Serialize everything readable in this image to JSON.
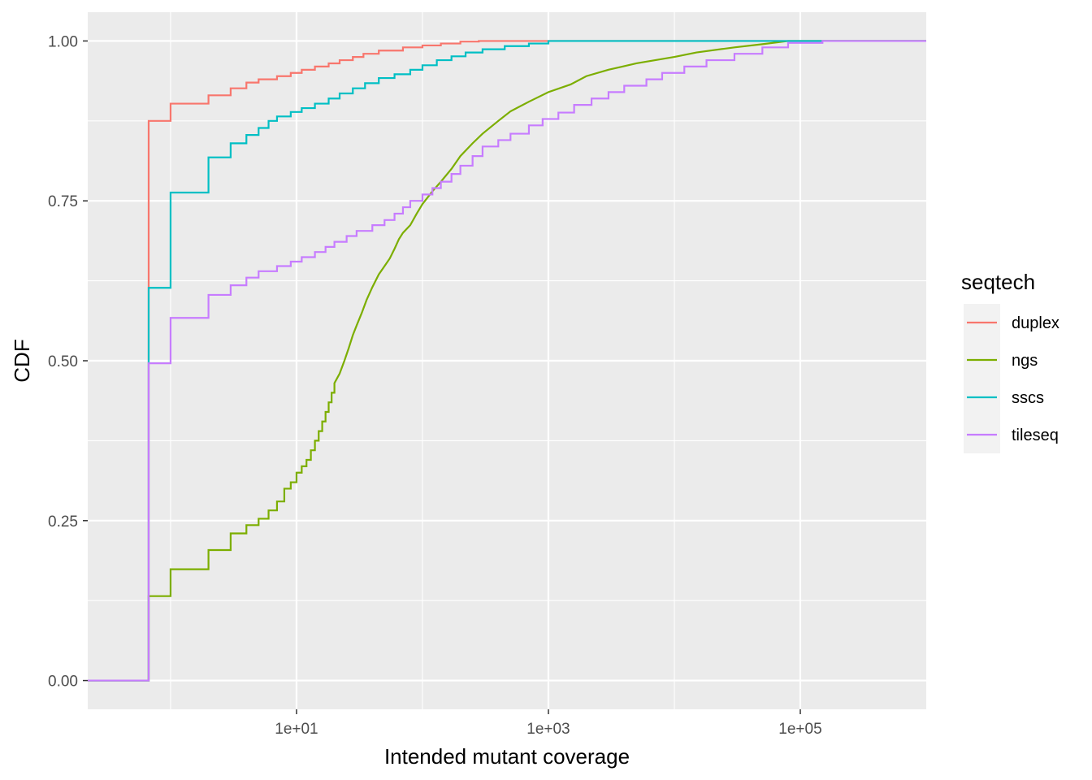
{
  "chart_data": {
    "type": "line",
    "title": "",
    "xlabel": "Intended mutant coverage",
    "ylabel": "CDF",
    "x_scale": "log10",
    "xlim": [
      0.22,
      1000000
    ],
    "ylim": [
      -0.045,
      1.045
    ],
    "x_ticks": [
      10,
      1000,
      100000
    ],
    "x_tick_labels": [
      "1e+01",
      "1e+03",
      "1e+05"
    ],
    "x_minor_ticks": [
      1,
      100,
      10000
    ],
    "y_ticks": [
      0,
      0.25,
      0.5,
      0.75,
      1
    ],
    "y_tick_labels": [
      "0.00",
      "0.25",
      "0.50",
      "0.75",
      "1.00"
    ],
    "grid": true,
    "legend": {
      "title": "seqtech",
      "position": "right"
    },
    "series": [
      {
        "name": "duplex",
        "color": "#F8766D",
        "points": [
          [
            0.22,
            0
          ],
          [
            0.67,
            0
          ],
          [
            0.67,
            0.875
          ],
          [
            1,
            0.875
          ],
          [
            1,
            0.902
          ],
          [
            2,
            0.902
          ],
          [
            2,
            0.915
          ],
          [
            3,
            0.915
          ],
          [
            3,
            0.926
          ],
          [
            4,
            0.926
          ],
          [
            4,
            0.935
          ],
          [
            5,
            0.935
          ],
          [
            5,
            0.94
          ],
          [
            7,
            0.94
          ],
          [
            7,
            0.945
          ],
          [
            9,
            0.945
          ],
          [
            9,
            0.95
          ],
          [
            11,
            0.95
          ],
          [
            11,
            0.955
          ],
          [
            14,
            0.955
          ],
          [
            14,
            0.96
          ],
          [
            18,
            0.96
          ],
          [
            18,
            0.965
          ],
          [
            22,
            0.965
          ],
          [
            22,
            0.97
          ],
          [
            28,
            0.97
          ],
          [
            28,
            0.975
          ],
          [
            34,
            0.975
          ],
          [
            34,
            0.98
          ],
          [
            45,
            0.98
          ],
          [
            45,
            0.985
          ],
          [
            70,
            0.985
          ],
          [
            70,
            0.99
          ],
          [
            100,
            0.99
          ],
          [
            100,
            0.993
          ],
          [
            140,
            0.993
          ],
          [
            140,
            0.996
          ],
          [
            200,
            0.996
          ],
          [
            200,
            0.999
          ],
          [
            280,
            0.999
          ],
          [
            280,
            1
          ],
          [
            1000000,
            1
          ]
        ]
      },
      {
        "name": "ngs",
        "color": "#7CAE00",
        "points": [
          [
            0.22,
            0
          ],
          [
            0.67,
            0
          ],
          [
            0.67,
            0.132
          ],
          [
            1,
            0.132
          ],
          [
            1,
            0.174
          ],
          [
            2,
            0.174
          ],
          [
            2,
            0.204
          ],
          [
            3,
            0.204
          ],
          [
            3,
            0.23
          ],
          [
            4,
            0.23
          ],
          [
            4,
            0.243
          ],
          [
            5,
            0.243
          ],
          [
            5,
            0.253
          ],
          [
            6,
            0.253
          ],
          [
            6,
            0.266
          ],
          [
            7,
            0.266
          ],
          [
            7,
            0.28
          ],
          [
            8,
            0.28
          ],
          [
            8,
            0.3
          ],
          [
            9,
            0.3
          ],
          [
            9,
            0.31
          ],
          [
            10,
            0.31
          ],
          [
            10,
            0.325
          ],
          [
            11,
            0.325
          ],
          [
            11,
            0.335
          ],
          [
            12,
            0.335
          ],
          [
            12,
            0.345
          ],
          [
            13,
            0.345
          ],
          [
            13,
            0.36
          ],
          [
            14,
            0.36
          ],
          [
            14,
            0.375
          ],
          [
            15,
            0.375
          ],
          [
            15,
            0.39
          ],
          [
            16,
            0.39
          ],
          [
            16,
            0.405
          ],
          [
            17,
            0.405
          ],
          [
            17,
            0.42
          ],
          [
            18,
            0.42
          ],
          [
            18,
            0.435
          ],
          [
            19,
            0.435
          ],
          [
            19,
            0.45
          ],
          [
            20,
            0.45
          ],
          [
            20,
            0.465
          ],
          [
            22,
            0.48
          ],
          [
            24,
            0.5
          ],
          [
            26,
            0.52
          ],
          [
            28,
            0.54
          ],
          [
            30,
            0.555
          ],
          [
            33,
            0.575
          ],
          [
            36,
            0.595
          ],
          [
            40,
            0.615
          ],
          [
            45,
            0.635
          ],
          [
            50,
            0.648
          ],
          [
            55,
            0.66
          ],
          [
            60,
            0.675
          ],
          [
            65,
            0.69
          ],
          [
            70,
            0.7
          ],
          [
            80,
            0.712
          ],
          [
            90,
            0.73
          ],
          [
            100,
            0.745
          ],
          [
            120,
            0.765
          ],
          [
            140,
            0.78
          ],
          [
            170,
            0.8
          ],
          [
            200,
            0.82
          ],
          [
            250,
            0.84
          ],
          [
            300,
            0.855
          ],
          [
            400,
            0.875
          ],
          [
            500,
            0.89
          ],
          [
            700,
            0.905
          ],
          [
            1000,
            0.92
          ],
          [
            1500,
            0.932
          ],
          [
            2000,
            0.945
          ],
          [
            3000,
            0.955
          ],
          [
            5000,
            0.965
          ],
          [
            10000,
            0.975
          ],
          [
            15000,
            0.982
          ],
          [
            30000,
            0.99
          ],
          [
            50000,
            0.995
          ],
          [
            80000,
            1
          ],
          [
            1000000,
            1
          ]
        ]
      },
      {
        "name": "sscs",
        "color": "#00BFC4",
        "points": [
          [
            0.22,
            0
          ],
          [
            0.67,
            0
          ],
          [
            0.67,
            0.614
          ],
          [
            1,
            0.614
          ],
          [
            1,
            0.763
          ],
          [
            2,
            0.763
          ],
          [
            2,
            0.818
          ],
          [
            3,
            0.818
          ],
          [
            3,
            0.84
          ],
          [
            4,
            0.84
          ],
          [
            4,
            0.853
          ],
          [
            5,
            0.853
          ],
          [
            5,
            0.864
          ],
          [
            6,
            0.864
          ],
          [
            6,
            0.875
          ],
          [
            7,
            0.875
          ],
          [
            7,
            0.882
          ],
          [
            9,
            0.882
          ],
          [
            9,
            0.889
          ],
          [
            11,
            0.889
          ],
          [
            11,
            0.895
          ],
          [
            14,
            0.895
          ],
          [
            14,
            0.902
          ],
          [
            18,
            0.902
          ],
          [
            18,
            0.91
          ],
          [
            22,
            0.91
          ],
          [
            22,
            0.918
          ],
          [
            28,
            0.918
          ],
          [
            28,
            0.926
          ],
          [
            35,
            0.926
          ],
          [
            35,
            0.934
          ],
          [
            45,
            0.934
          ],
          [
            45,
            0.942
          ],
          [
            60,
            0.942
          ],
          [
            60,
            0.948
          ],
          [
            80,
            0.948
          ],
          [
            80,
            0.955
          ],
          [
            100,
            0.955
          ],
          [
            100,
            0.962
          ],
          [
            130,
            0.962
          ],
          [
            130,
            0.97
          ],
          [
            170,
            0.97
          ],
          [
            170,
            0.976
          ],
          [
            220,
            0.976
          ],
          [
            220,
            0.982
          ],
          [
            300,
            0.982
          ],
          [
            300,
            0.987
          ],
          [
            450,
            0.987
          ],
          [
            450,
            0.992
          ],
          [
            700,
            0.992
          ],
          [
            700,
            0.996
          ],
          [
            1000,
            0.996
          ],
          [
            1000,
            1
          ],
          [
            1000000,
            1
          ]
        ]
      },
      {
        "name": "tileseq",
        "color": "#C77CFF",
        "points": [
          [
            0.22,
            0
          ],
          [
            0.67,
            0
          ],
          [
            0.67,
            0.496
          ],
          [
            1,
            0.496
          ],
          [
            1,
            0.567
          ],
          [
            2,
            0.567
          ],
          [
            2,
            0.603
          ],
          [
            3,
            0.603
          ],
          [
            3,
            0.618
          ],
          [
            4,
            0.618
          ],
          [
            4,
            0.63
          ],
          [
            5,
            0.63
          ],
          [
            5,
            0.64
          ],
          [
            7,
            0.64
          ],
          [
            7,
            0.648
          ],
          [
            9,
            0.648
          ],
          [
            9,
            0.655
          ],
          [
            11,
            0.655
          ],
          [
            11,
            0.662
          ],
          [
            14,
            0.662
          ],
          [
            14,
            0.67
          ],
          [
            17,
            0.67
          ],
          [
            17,
            0.678
          ],
          [
            20,
            0.678
          ],
          [
            20,
            0.686
          ],
          [
            25,
            0.686
          ],
          [
            25,
            0.695
          ],
          [
            30,
            0.695
          ],
          [
            30,
            0.703
          ],
          [
            40,
            0.703
          ],
          [
            40,
            0.712
          ],
          [
            50,
            0.712
          ],
          [
            50,
            0.72
          ],
          [
            60,
            0.72
          ],
          [
            60,
            0.73
          ],
          [
            70,
            0.73
          ],
          [
            70,
            0.74
          ],
          [
            80,
            0.74
          ],
          [
            80,
            0.75
          ],
          [
            100,
            0.75
          ],
          [
            100,
            0.76
          ],
          [
            120,
            0.76
          ],
          [
            120,
            0.77
          ],
          [
            140,
            0.77
          ],
          [
            140,
            0.78
          ],
          [
            170,
            0.78
          ],
          [
            170,
            0.792
          ],
          [
            200,
            0.792
          ],
          [
            200,
            0.805
          ],
          [
            250,
            0.805
          ],
          [
            250,
            0.82
          ],
          [
            300,
            0.82
          ],
          [
            300,
            0.835
          ],
          [
            400,
            0.835
          ],
          [
            400,
            0.845
          ],
          [
            500,
            0.845
          ],
          [
            500,
            0.855
          ],
          [
            700,
            0.855
          ],
          [
            700,
            0.868
          ],
          [
            900,
            0.868
          ],
          [
            900,
            0.878
          ],
          [
            1200,
            0.878
          ],
          [
            1200,
            0.888
          ],
          [
            1600,
            0.888
          ],
          [
            1600,
            0.9
          ],
          [
            2200,
            0.9
          ],
          [
            2200,
            0.91
          ],
          [
            3000,
            0.91
          ],
          [
            3000,
            0.92
          ],
          [
            4000,
            0.92
          ],
          [
            4000,
            0.93
          ],
          [
            6000,
            0.93
          ],
          [
            6000,
            0.94
          ],
          [
            8000,
            0.94
          ],
          [
            8000,
            0.95
          ],
          [
            12000,
            0.95
          ],
          [
            12000,
            0.96
          ],
          [
            18000,
            0.96
          ],
          [
            18000,
            0.97
          ],
          [
            30000,
            0.97
          ],
          [
            30000,
            0.98
          ],
          [
            50000,
            0.98
          ],
          [
            50000,
            0.99
          ],
          [
            80000,
            0.99
          ],
          [
            80000,
            0.997
          ],
          [
            150000,
            0.997
          ],
          [
            150000,
            1
          ],
          [
            1000000,
            1
          ]
        ]
      }
    ]
  }
}
